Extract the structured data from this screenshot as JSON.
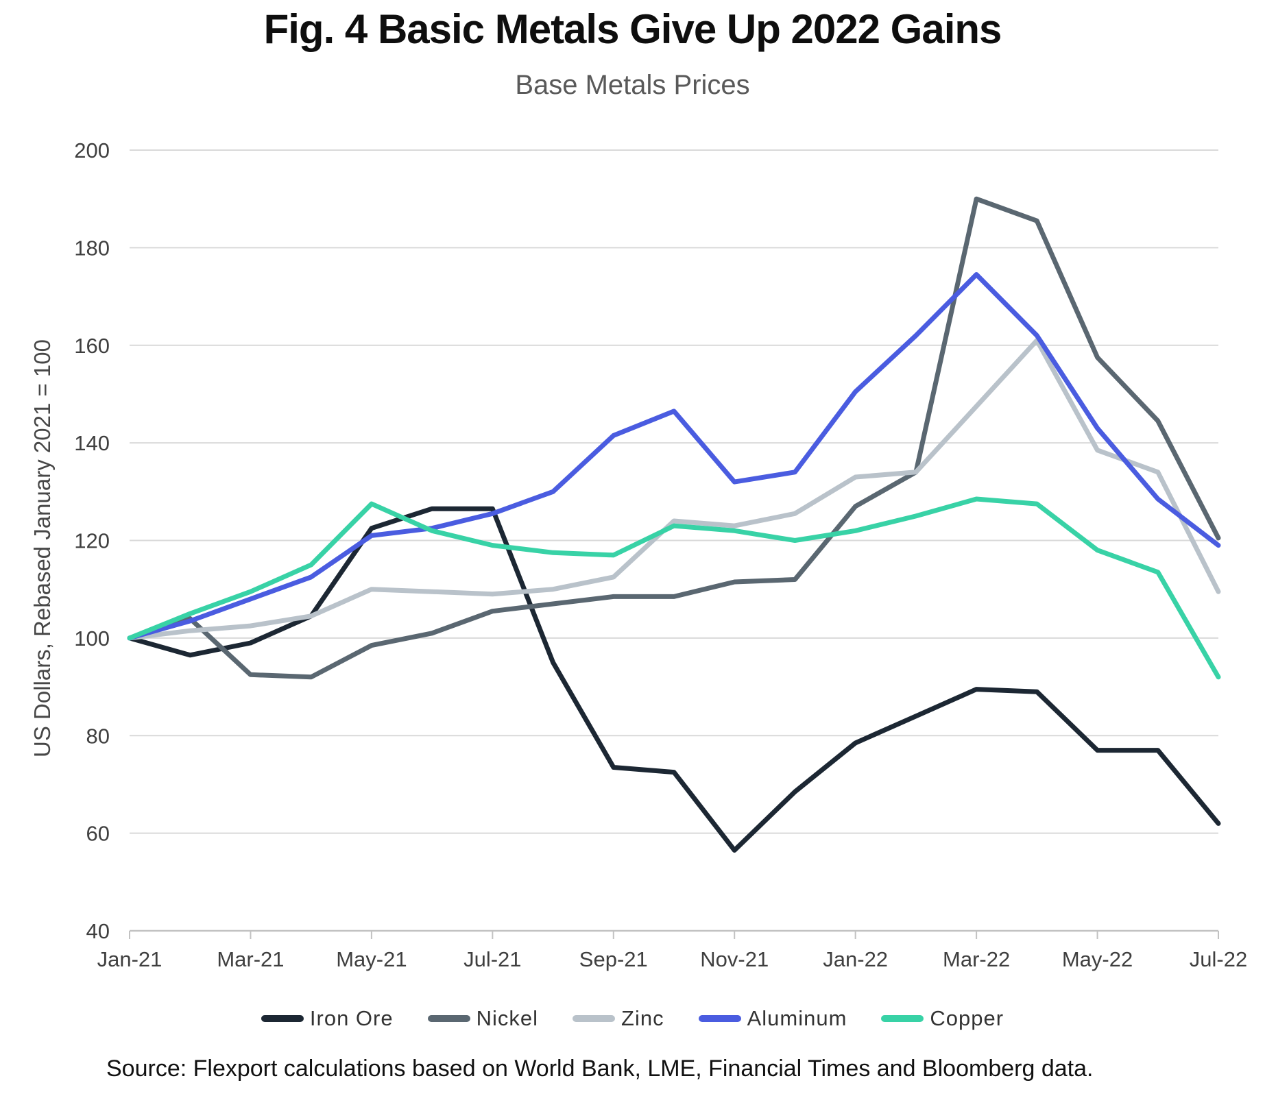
{
  "header": {
    "title": "Fig. 4 Basic Metals Give Up 2022 Gains",
    "subtitle": "Base Metals Prices"
  },
  "footer": {
    "source": "Source: Flexport calculations based on World Bank, LME, Financial Times and Bloomberg data."
  },
  "chart_data": {
    "type": "line",
    "title": "Fig. 4 Basic Metals Give Up 2022 Gains",
    "subtitle": "Base Metals Prices",
    "xlabel": "",
    "ylabel": "US Dollars, Rebased January 2021 = 100",
    "ylim": [
      40,
      200
    ],
    "ytick_step": 20,
    "grid": true,
    "legend_position": "bottom",
    "x": [
      "Jan-21",
      "Feb-21",
      "Mar-21",
      "Apr-21",
      "May-21",
      "Jun-21",
      "Jul-21",
      "Aug-21",
      "Sep-21",
      "Oct-21",
      "Nov-21",
      "Dec-21",
      "Jan-22",
      "Feb-22",
      "Mar-22",
      "Apr-22",
      "May-22",
      "Jun-22",
      "Jul-22"
    ],
    "x_label_every": 2,
    "series": [
      {
        "name": "Iron Ore",
        "color": "#1c2733",
        "values": [
          100,
          96.5,
          99,
          104.5,
          122.5,
          126.5,
          126.5,
          95,
          73.5,
          72.5,
          56.5,
          68.5,
          78.5,
          84,
          89.5,
          89,
          77,
          77,
          62
        ]
      },
      {
        "name": "Nickel",
        "color": "#5a6771",
        "values": [
          100,
          104,
          92.5,
          92,
          98.5,
          101,
          105.5,
          107,
          108.5,
          108.5,
          111.5,
          112,
          127,
          134,
          190,
          185.5,
          157.5,
          144.5,
          120.5
        ]
      },
      {
        "name": "Zinc",
        "color": "#b9c2ca",
        "values": [
          100,
          101.5,
          102.5,
          104.5,
          110,
          109.5,
          109,
          110,
          112.5,
          124,
          123,
          125.5,
          133,
          134,
          147.5,
          161,
          138.5,
          134,
          109.5
        ]
      },
      {
        "name": "Aluminum",
        "color": "#4a5ce0",
        "values": [
          100,
          103.5,
          108,
          112.5,
          121,
          122.5,
          125.5,
          130,
          141.5,
          146.5,
          132,
          134,
          150.5,
          162,
          174.5,
          162,
          143,
          128.5,
          119
        ]
      },
      {
        "name": "Copper",
        "color": "#38d2a6",
        "values": [
          100,
          105,
          109.5,
          115,
          127.5,
          122,
          119,
          117.5,
          117,
          123,
          122,
          120,
          122,
          125,
          128.5,
          127.5,
          118,
          113.5,
          92
        ]
      }
    ],
    "style": {
      "grid_color": "#d9d9d9",
      "axis_color": "#c2c2c2",
      "tick_label_color": "#3f3f3f",
      "line_width": 7
    }
  }
}
